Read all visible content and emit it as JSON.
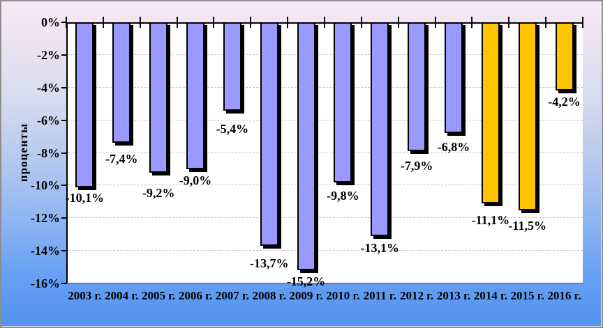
{
  "chart_data": {
    "type": "bar",
    "title": "",
    "ylabel": "проценты",
    "xlabel": "",
    "categories": [
      "2003 г.",
      "2004 г.",
      "2005 г.",
      "2006 г.",
      "2007 г.",
      "2008 г.",
      "2009 г.",
      "2010 г.",
      "2011 г.",
      "2012 г.",
      "2013 г.",
      "2014 г.",
      "2015 г.",
      "2016 г."
    ],
    "values": [
      -10.1,
      -7.4,
      -9.2,
      -9.0,
      -5.4,
      -13.7,
      -15.2,
      -9.8,
      -13.1,
      -7.9,
      -6.8,
      -11.1,
      -11.5,
      -4.2
    ],
    "data_labels": [
      "-10,1%",
      "-7,4%",
      "-9,2%",
      "-9,0%",
      "-5,4%",
      "-13,7%",
      "-15,2%",
      "-9,8%",
      "-13,1%",
      "-7,9%",
      "-6,8%",
      "-11,1%",
      "-11,5%",
      "-4,2%"
    ],
    "bar_colors": [
      "#9999FE",
      "#9999FE",
      "#9999FE",
      "#9999FE",
      "#9999FE",
      "#9999FE",
      "#9999FE",
      "#9999FE",
      "#9999FE",
      "#9999FE",
      "#9999FE",
      "#FFC400",
      "#FFC400",
      "#FFC400"
    ],
    "y_ticks": [
      "0%",
      "-2%",
      "-4%",
      "-6%",
      "-8%",
      "-10%",
      "-12%",
      "-14%",
      "-16%"
    ],
    "ylim": [
      -16,
      0
    ],
    "grid": "horizontal-dashed",
    "legend": "none",
    "palette": {
      "series_main": "#9999FE",
      "series_highlight": "#FFC400",
      "bar_border": "#000000",
      "bar_shadow": "#000000",
      "axis_line": "#000000",
      "gridline": "#C6C6C6",
      "plot_background": "#FFFFFF",
      "background_top": "#F8E8F4",
      "background_bottom": "#5392F0",
      "text": "#000000"
    }
  }
}
